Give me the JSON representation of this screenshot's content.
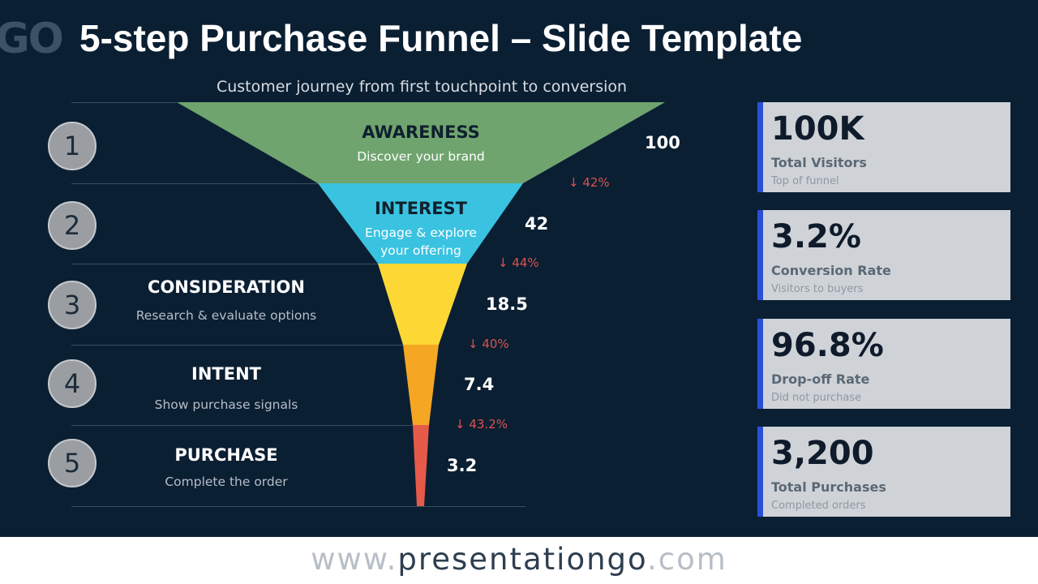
{
  "slide": {
    "logo_text": "GO",
    "title": "5-step Purchase Funnel – Slide Template",
    "subtitle": "Customer journey from first touchpoint to conversion"
  },
  "colors": {
    "background": "#0b1f33",
    "awareness": "#6fa46e",
    "interest": "#39c3e0",
    "consideration": "#fdd835",
    "intent": "#f5a623",
    "purchase": "#e65a4a",
    "drop": "#d9534f",
    "kpi_accent": "#2a4fd6"
  },
  "stages": [
    {
      "number": "1",
      "title": "AWARENESS",
      "desc": "Discover your brand",
      "value": "100",
      "drop": "↓ 42%"
    },
    {
      "number": "2",
      "title": "INTEREST",
      "desc": "Engage & explore your offering",
      "value": "42",
      "drop": "↓ 44%"
    },
    {
      "number": "3",
      "title": "CONSIDERATION",
      "desc": "Research & evaluate options",
      "value": "18.5",
      "drop": "↓ 40%"
    },
    {
      "number": "4",
      "title": "INTENT",
      "desc": "Show purchase signals",
      "value": "7.4",
      "drop": "↓ 43.2%"
    },
    {
      "number": "5",
      "title": "PURCHASE",
      "desc": "Complete the order",
      "value": "3.2"
    }
  ],
  "kpis": [
    {
      "value": "100K",
      "label": "Total Visitors",
      "sub": "Top of funnel"
    },
    {
      "value": "3.2%",
      "label": "Conversion Rate",
      "sub": "Visitors to buyers"
    },
    {
      "value": "96.8%",
      "label": "Drop-off Rate",
      "sub": "Did not purchase"
    },
    {
      "value": "3,200",
      "label": "Total Purchases",
      "sub": "Completed orders"
    }
  ],
  "footer": {
    "prefix": "www.",
    "brand": "presentationgo",
    "suffix": ".com"
  }
}
